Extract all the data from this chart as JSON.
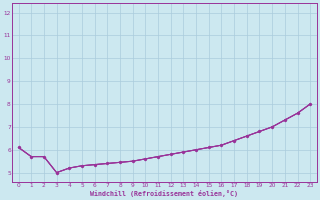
{
  "xlabel": "Windchill (Refroidissement éolien,°C)",
  "bg_color": "#cce8f0",
  "grid_color": "#aaccdd",
  "line_color": "#993399",
  "xlim": [
    -0.5,
    23.5
  ],
  "ylim": [
    4.6,
    12.4
  ],
  "xticks": [
    0,
    1,
    2,
    3,
    4,
    5,
    6,
    7,
    8,
    9,
    10,
    11,
    12,
    13,
    14,
    15,
    16,
    17,
    18,
    19,
    20,
    21,
    22,
    23
  ],
  "yticks": [
    5,
    6,
    7,
    8,
    9,
    10,
    11,
    12
  ],
  "line1_x": [
    0,
    1,
    2,
    3,
    4,
    5,
    6,
    7,
    8,
    9,
    10,
    11,
    12,
    13,
    14,
    15,
    16,
    17,
    18,
    19,
    20,
    21,
    22,
    23
  ],
  "line1_y": [
    6.1,
    5.7,
    5.7,
    5.0,
    5.2,
    5.3,
    5.35,
    5.4,
    5.45,
    5.5,
    5.6,
    5.7,
    5.8,
    5.9,
    6.0,
    6.1,
    6.2,
    6.4,
    6.6,
    6.8,
    7.0,
    7.3,
    7.6,
    8.0
  ],
  "line2_x": [
    0,
    1,
    2,
    3,
    4,
    5,
    6,
    7,
    8,
    9,
    10,
    11,
    12,
    13,
    14,
    15,
    16,
    17,
    18,
    19,
    20,
    21,
    22,
    23
  ],
  "line2_y": [
    6.1,
    5.7,
    5.7,
    5.0,
    5.2,
    5.3,
    5.35,
    5.4,
    5.45,
    5.5,
    5.6,
    5.7,
    5.8,
    5.9,
    6.0,
    6.1,
    6.2,
    6.4,
    6.6,
    6.8,
    7.0,
    7.3,
    7.6,
    8.0
  ],
  "line3_x": [
    0,
    1,
    2,
    3,
    4,
    5,
    6,
    7,
    8,
    9,
    10,
    11,
    12,
    13,
    14,
    15,
    16,
    17,
    18,
    19,
    20,
    21,
    22,
    23
  ],
  "line3_y": [
    6.1,
    5.7,
    5.7,
    5.0,
    5.2,
    5.3,
    5.35,
    5.4,
    5.45,
    5.5,
    5.6,
    5.7,
    5.8,
    5.9,
    6.0,
    6.1,
    6.2,
    6.4,
    6.6,
    6.8,
    7.0,
    7.3,
    7.6,
    8.0
  ]
}
